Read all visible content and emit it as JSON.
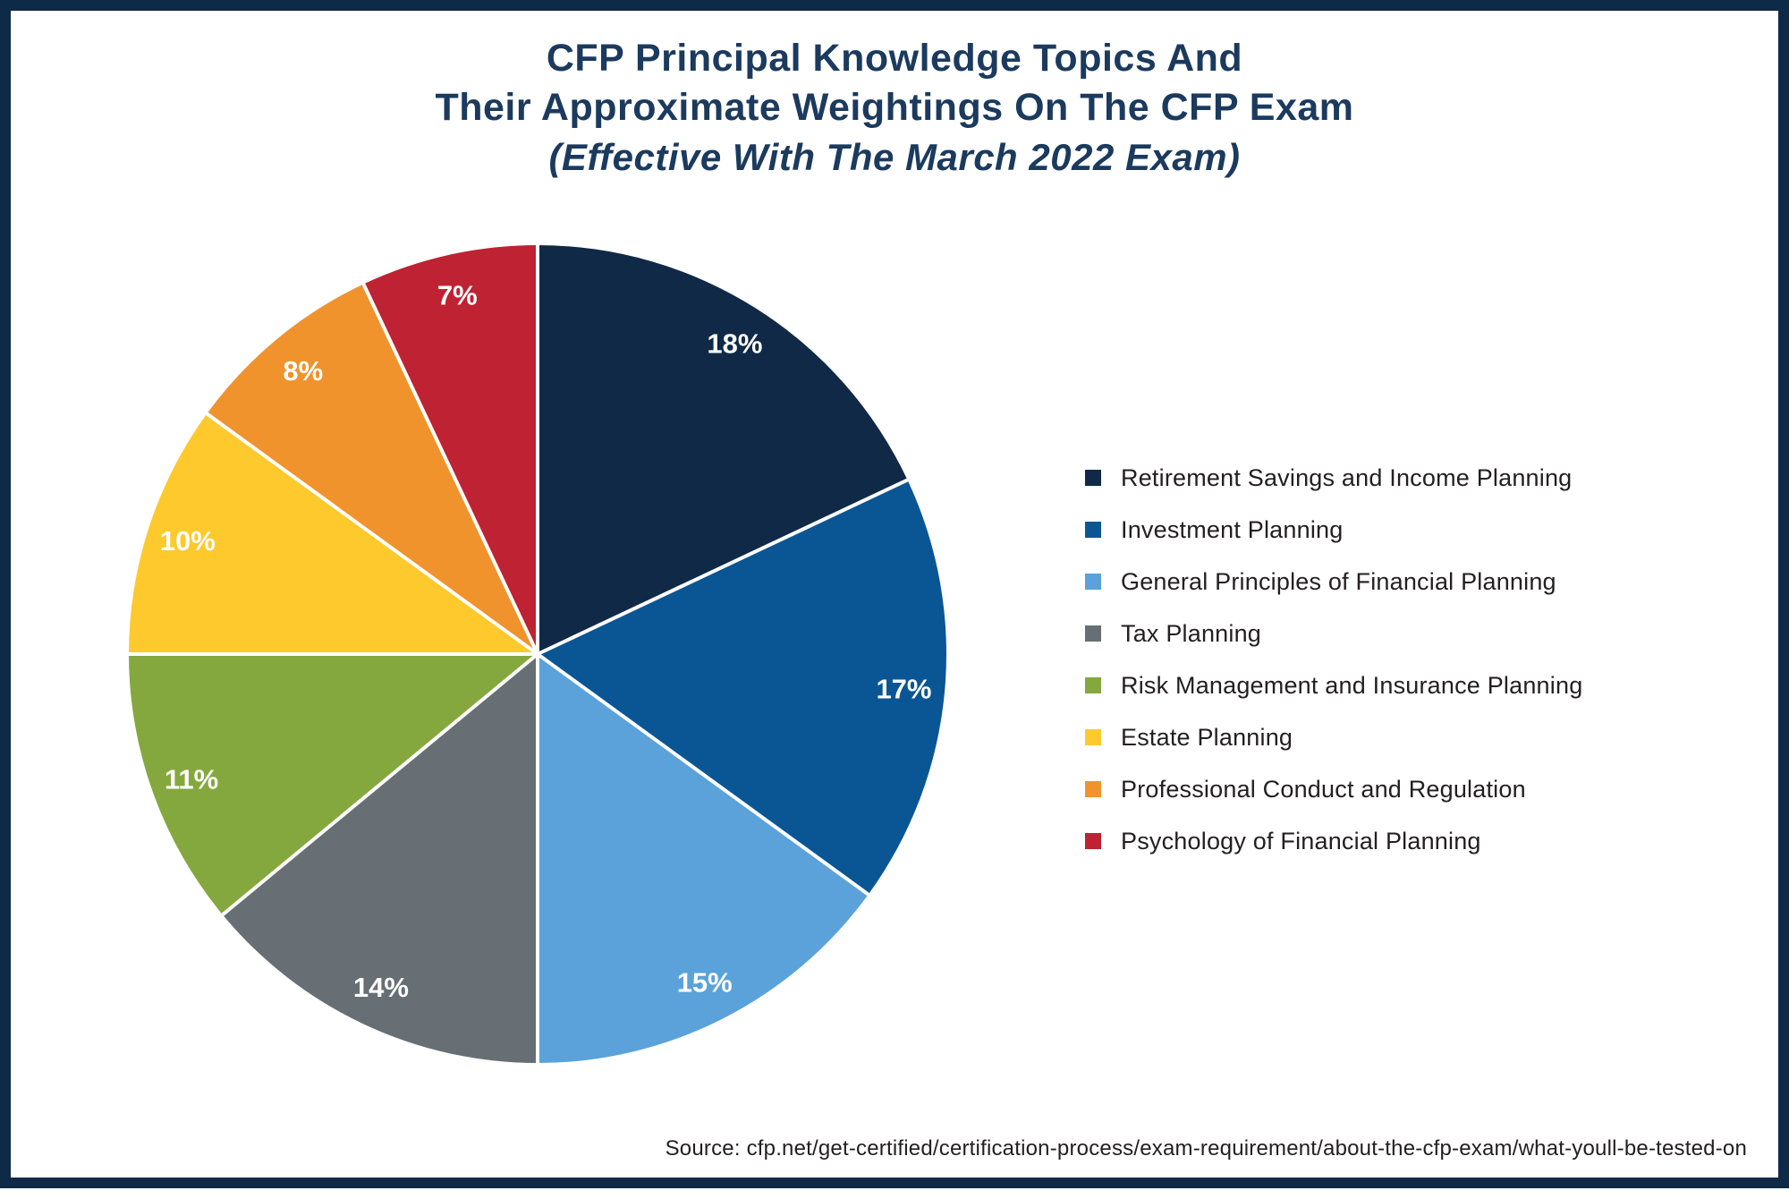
{
  "header": {
    "title_line1": "CFP Principal Knowledge Topics And",
    "title_line2": "Their Approximate Weightings On The CFP Exam",
    "subtitle": "(Effective With The March 2022 Exam)"
  },
  "footer": {
    "source": "Source: cfp.net/get-certified/certification-process/exam-requirement/about-the-cfp-exam/what-youll-be-tested-on"
  },
  "colors": {
    "frame_border": "#0f2a47",
    "title_text": "#1b3a5e",
    "body_text": "#231f20",
    "slice_label_text": "#ffffff",
    "slice_divider": "#ffffff"
  },
  "chart_data": {
    "type": "pie",
    "title": "CFP Principal Knowledge Topics And Their Approximate Weightings On The CFP Exam",
    "subtitle": "(Effective With The March 2022 Exam)",
    "start_position": "12 o'clock",
    "direction": "clockwise",
    "value_suffix": "%",
    "legend_position": "right",
    "slices": [
      {
        "label": "Retirement Savings and Income Planning",
        "value": 18,
        "pct_label": "18%",
        "color": "#0f2947"
      },
      {
        "label": "Investment Planning",
        "value": 17,
        "pct_label": "17%",
        "color": "#0a5694"
      },
      {
        "label": "General Principles of Financial Planning",
        "value": 15,
        "pct_label": "15%",
        "color": "#5aa2d9"
      },
      {
        "label": "Tax Planning",
        "value": 14,
        "pct_label": "14%",
        "color": "#676f74"
      },
      {
        "label": "Risk Management and Insurance Planning",
        "value": 11,
        "pct_label": "11%",
        "color": "#84a83e"
      },
      {
        "label": "Estate Planning",
        "value": 10,
        "pct_label": "10%",
        "color": "#fec92d"
      },
      {
        "label": "Professional Conduct and Regulation",
        "value": 8,
        "pct_label": "8%",
        "color": "#f0932d"
      },
      {
        "label": "Psychology of Financial Planning",
        "value": 7,
        "pct_label": "7%",
        "color": "#bf2232"
      }
    ]
  }
}
